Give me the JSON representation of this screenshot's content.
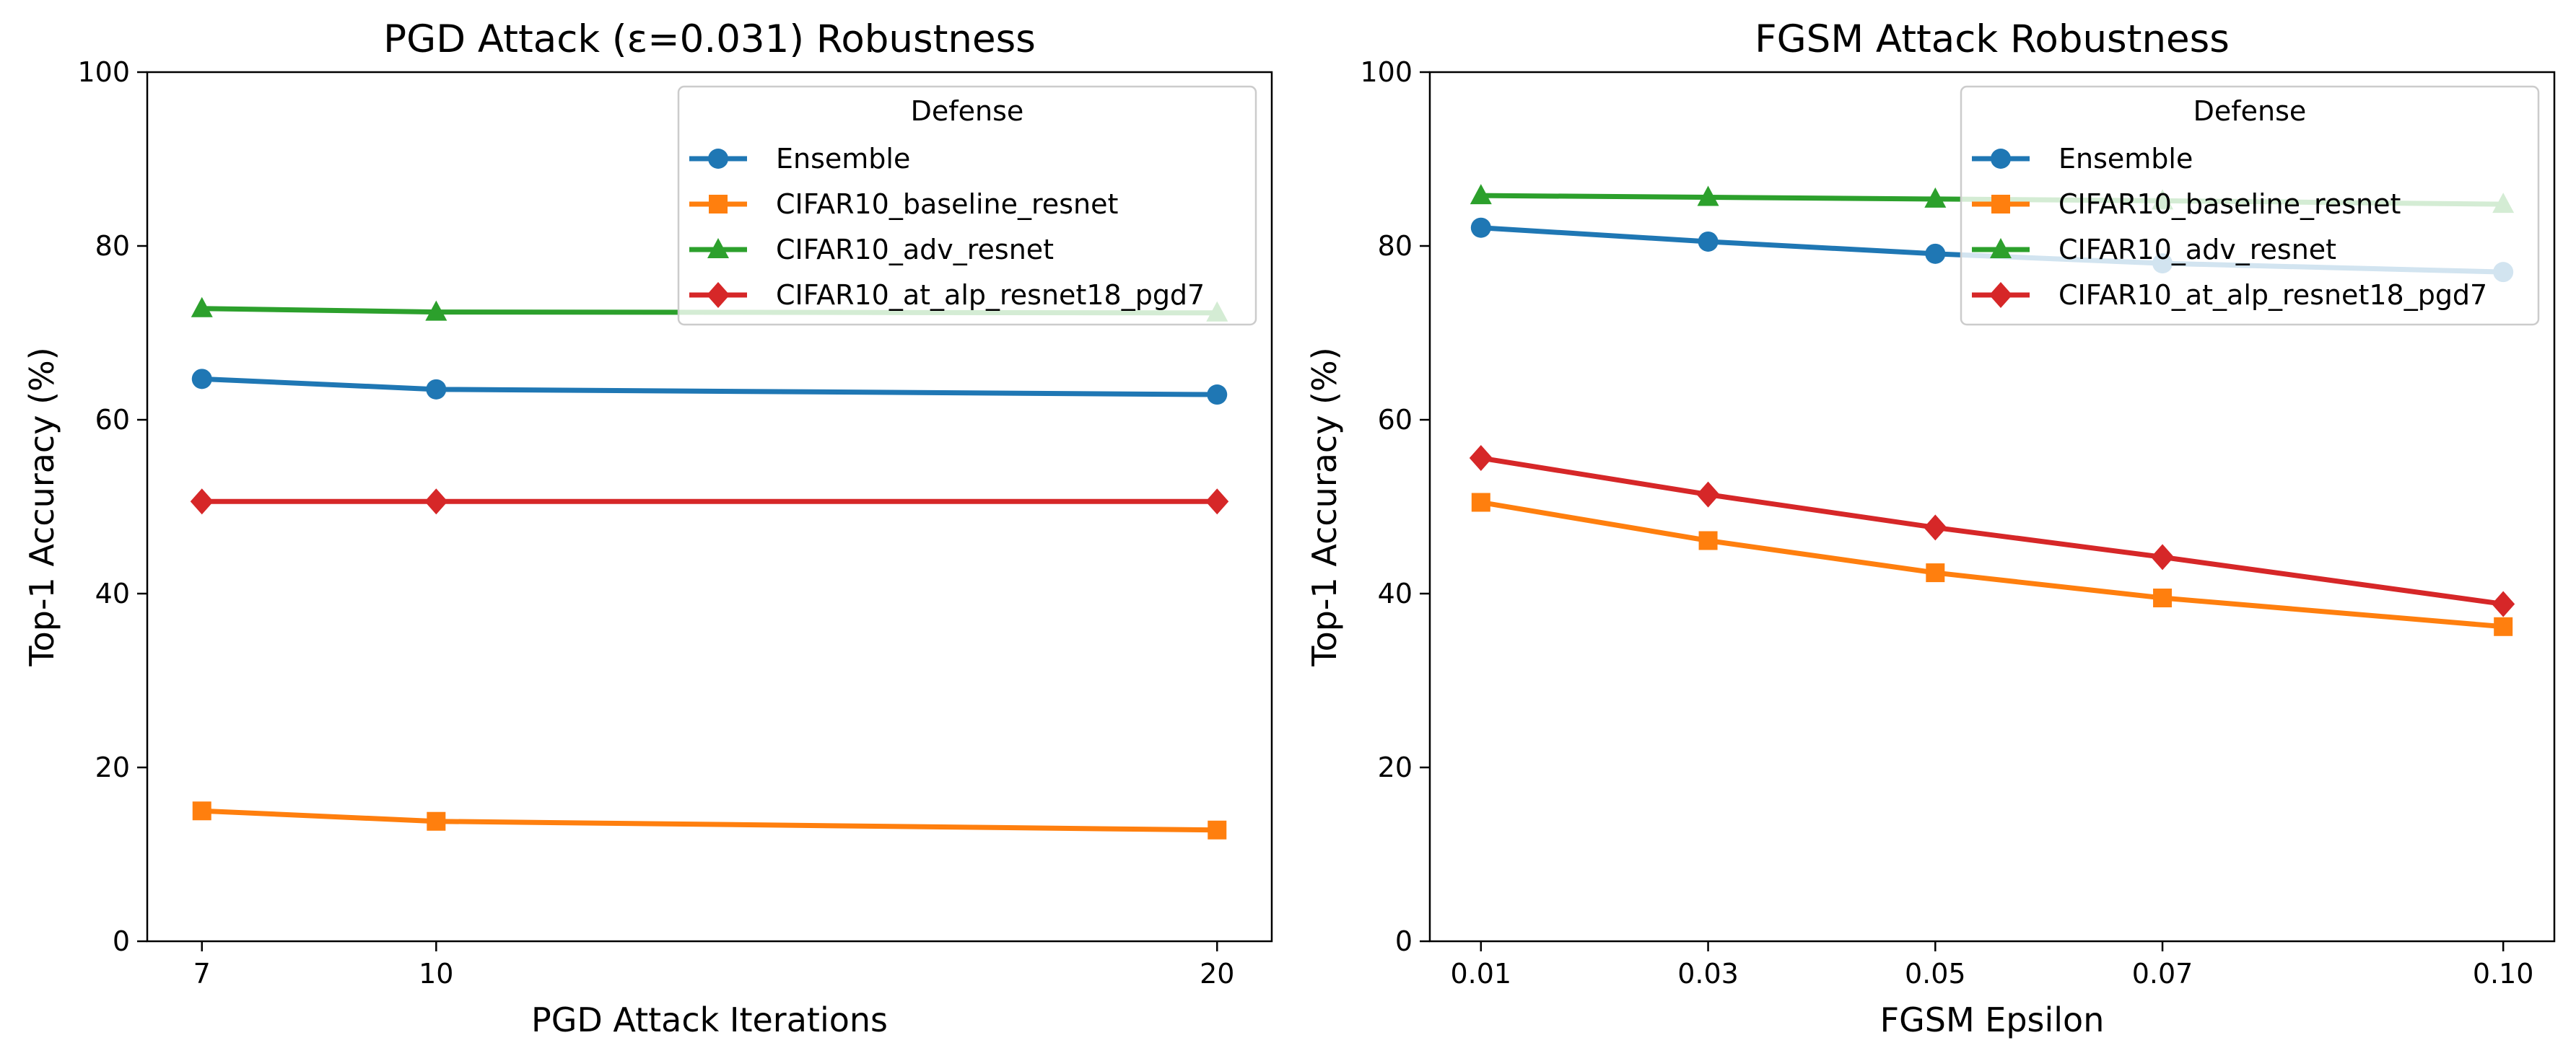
{
  "chart_data": [
    {
      "type": "line",
      "title": "PGD Attack (ε=0.031) Robustness",
      "xlabel": "PGD Attack Iterations",
      "ylabel": "Top-1 Accuracy (%)",
      "x": [
        7,
        10,
        20
      ],
      "x_tick_labels": [
        "7",
        "10",
        "20"
      ],
      "xlim": [
        6.3,
        20.7
      ],
      "ylim": [
        0,
        100
      ],
      "y_ticks": [
        0,
        20,
        40,
        60,
        80,
        100
      ],
      "grid": false,
      "legend": {
        "title": "Defense",
        "placement": "top-right"
      },
      "series": [
        {
          "name": "Ensemble",
          "color": "#1f77b4",
          "marker": "circle",
          "values": [
            64.7,
            63.5,
            62.9
          ]
        },
        {
          "name": "CIFAR10_baseline_resnet",
          "color": "#ff7f0e",
          "marker": "square",
          "values": [
            15.0,
            13.8,
            12.8
          ]
        },
        {
          "name": "CIFAR10_adv_resnet",
          "color": "#2ca02c",
          "marker": "triangle",
          "values": [
            72.8,
            72.4,
            72.3
          ]
        },
        {
          "name": "CIFAR10_at_alp_resnet18_pgd7",
          "color": "#d62728",
          "marker": "diamond",
          "values": [
            50.6,
            50.6,
            50.6
          ]
        }
      ]
    },
    {
      "type": "line",
      "title": "FGSM Attack Robustness",
      "xlabel": "FGSM Epsilon",
      "ylabel": "Top-1 Accuracy (%)",
      "x": [
        0.01,
        0.03,
        0.05,
        0.07,
        0.1
      ],
      "x_tick_labels": [
        "0.01",
        "0.03",
        "0.05",
        "0.07",
        "0.10"
      ],
      "xlim": [
        0.0055,
        0.1045
      ],
      "ylim": [
        0,
        100
      ],
      "y_ticks": [
        0,
        20,
        40,
        60,
        80,
        100
      ],
      "grid": false,
      "legend": {
        "title": "Defense",
        "placement": "top-right"
      },
      "series": [
        {
          "name": "Ensemble",
          "color": "#1f77b4",
          "marker": "circle",
          "values": [
            82.1,
            80.5,
            79.1,
            78.0,
            77.0
          ]
        },
        {
          "name": "CIFAR10_baseline_resnet",
          "color": "#ff7f0e",
          "marker": "square",
          "values": [
            50.5,
            46.1,
            42.4,
            39.5,
            36.2
          ]
        },
        {
          "name": "CIFAR10_adv_resnet",
          "color": "#2ca02c",
          "marker": "triangle",
          "values": [
            85.8,
            85.6,
            85.4,
            85.2,
            84.8
          ]
        },
        {
          "name": "CIFAR10_at_alp_resnet18_pgd7",
          "color": "#d62728",
          "marker": "diamond",
          "values": [
            55.6,
            51.4,
            47.6,
            44.2,
            38.8
          ]
        }
      ]
    }
  ]
}
